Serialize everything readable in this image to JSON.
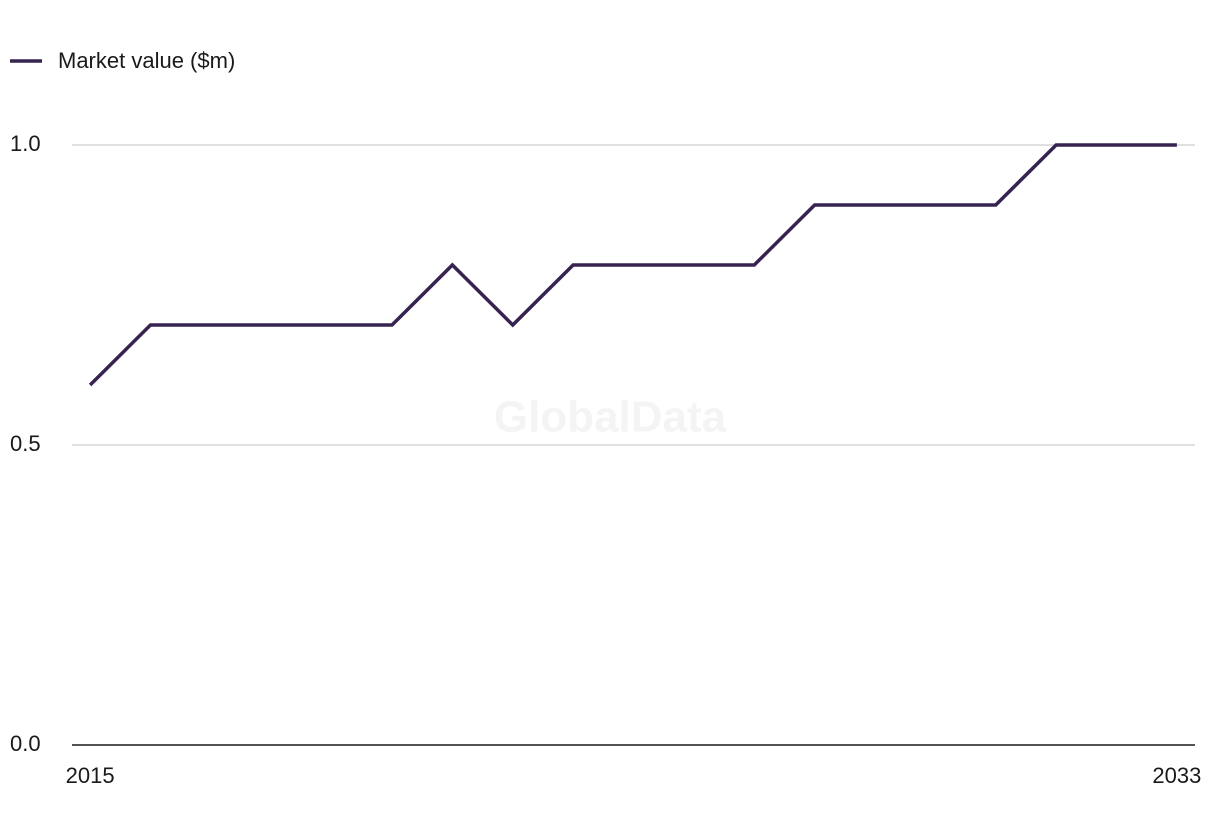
{
  "chart_data": {
    "type": "line",
    "watermark": "GlobalData",
    "x": [
      2015,
      2016,
      2017,
      2018,
      2019,
      2020,
      2021,
      2022,
      2023,
      2024,
      2025,
      2026,
      2027,
      2028,
      2029,
      2030,
      2031,
      2032,
      2033
    ],
    "series": [
      {
        "name": "Market value ($m)",
        "color": "#36234f",
        "values": [
          0.6,
          0.7,
          0.7,
          0.7,
          0.7,
          0.7,
          0.8,
          0.7,
          0.8,
          0.8,
          0.8,
          0.8,
          0.9,
          0.9,
          0.9,
          0.9,
          1.0,
          1.0,
          1.0
        ]
      }
    ],
    "xlim": [
      2014.7,
      2033.3
    ],
    "xticks": [
      2015,
      2033
    ],
    "ylim": [
      0,
      1.0
    ],
    "yticks": [
      {
        "value": 0,
        "label": "0.0"
      },
      {
        "value": 0.5,
        "label": "0.5"
      },
      {
        "value": 1.0,
        "label": "1.0"
      }
    ],
    "grid": true,
    "legend": "top-left"
  }
}
